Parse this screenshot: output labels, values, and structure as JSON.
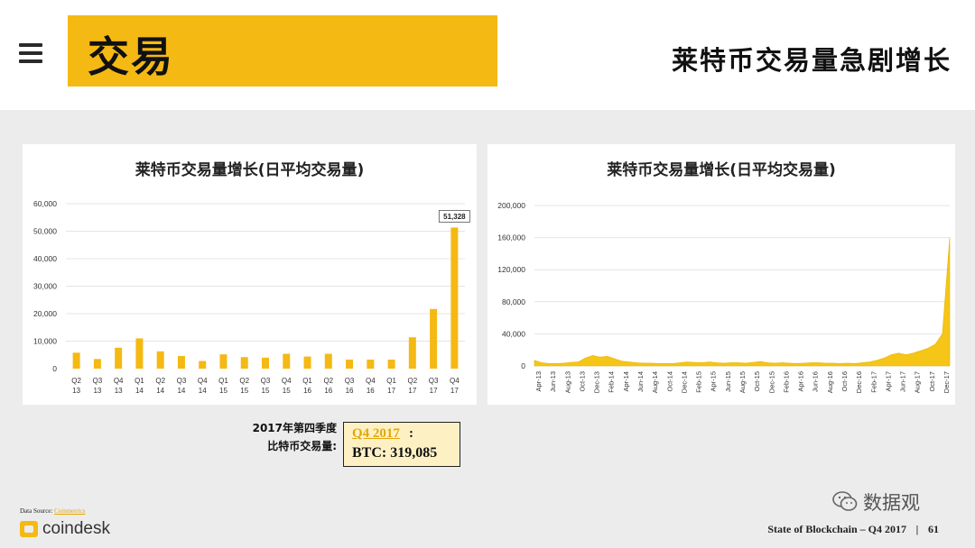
{
  "header": {
    "menu_icon": "hamburger-menu-icon",
    "section_title": "交易",
    "headline": "莱特币交易量急剧增长"
  },
  "colors": {
    "accent": "#f5b914",
    "bar": "#f5b914",
    "area": "#f5c518",
    "callout_bg": "#fdf1c4",
    "q4_highlight": "#e3a607"
  },
  "chart_data": [
    {
      "type": "bar",
      "title": "莱特币交易量增长(日平均交易量)",
      "categories": [
        "Q2 13",
        "Q3 13",
        "Q4 13",
        "Q1 14",
        "Q2 14",
        "Q3 14",
        "Q4 14",
        "Q1 15",
        "Q2 15",
        "Q3 15",
        "Q4 15",
        "Q1 16",
        "Q2 16",
        "Q3 16",
        "Q4 16",
        "Q1 17",
        "Q2 17",
        "Q3 17",
        "Q4 17"
      ],
      "category_lines": [
        [
          "Q2",
          "13"
        ],
        [
          "Q3",
          "13"
        ],
        [
          "Q4",
          "13"
        ],
        [
          "Q1",
          "14"
        ],
        [
          "Q2",
          "14"
        ],
        [
          "Q3",
          "14"
        ],
        [
          "Q4",
          "14"
        ],
        [
          "Q1",
          "15"
        ],
        [
          "Q2",
          "15"
        ],
        [
          "Q3",
          "15"
        ],
        [
          "Q4",
          "15"
        ],
        [
          "Q1",
          "16"
        ],
        [
          "Q2",
          "16"
        ],
        [
          "Q3",
          "16"
        ],
        [
          "Q4",
          "16"
        ],
        [
          "Q1",
          "17"
        ],
        [
          "Q2",
          "17"
        ],
        [
          "Q3",
          "17"
        ],
        [
          "Q4",
          "17"
        ]
      ],
      "values": [
        5800,
        3500,
        7600,
        11000,
        6300,
        4600,
        2800,
        5200,
        4200,
        4000,
        5400,
        4400,
        5400,
        3300,
        3300,
        3300,
        11400,
        21700,
        51328
      ],
      "data_labels": [
        {
          "index": 18,
          "text": "51,328"
        }
      ],
      "yticks": [
        "60,000",
        "50,000",
        "40,000",
        "30,000",
        "20,000",
        "10,000",
        "0"
      ],
      "ylim": [
        0,
        60000
      ],
      "grid": true,
      "xlabel": "",
      "ylabel": ""
    },
    {
      "type": "area",
      "title": "莱特币交易量增长(日平均交易量)",
      "x_tick_labels": [
        "Apr-13",
        "Jun-13",
        "Aug-13",
        "Oct-13",
        "Dec-13",
        "Feb-14",
        "Apr-14",
        "Jun-14",
        "Aug-14",
        "Oct-14",
        "Dec-14",
        "Feb-15",
        "Apr-15",
        "Jun-15",
        "Aug-15",
        "Oct-15",
        "Dec-15",
        "Feb-16",
        "Apr-16",
        "Jun-16",
        "Aug-16",
        "Oct-16",
        "Dec-16",
        "Feb-17",
        "Apr-17",
        "Jun-17",
        "Aug-17",
        "Oct-17",
        "Dec-17"
      ],
      "x": [
        "Apr-13",
        "May-13",
        "Jun-13",
        "Jul-13",
        "Aug-13",
        "Sep-13",
        "Oct-13",
        "Nov-13",
        "Dec-13",
        "Jan-14",
        "Feb-14",
        "Mar-14",
        "Apr-14",
        "May-14",
        "Jun-14",
        "Jul-14",
        "Aug-14",
        "Sep-14",
        "Oct-14",
        "Nov-14",
        "Dec-14",
        "Jan-15",
        "Feb-15",
        "Mar-15",
        "Apr-15",
        "May-15",
        "Jun-15",
        "Jul-15",
        "Aug-15",
        "Sep-15",
        "Oct-15",
        "Nov-15",
        "Dec-15",
        "Jan-16",
        "Feb-16",
        "Mar-16",
        "Apr-16",
        "May-16",
        "Jun-16",
        "Jul-16",
        "Aug-16",
        "Sep-16",
        "Oct-16",
        "Nov-16",
        "Dec-16",
        "Jan-17",
        "Feb-17",
        "Mar-17",
        "Apr-17",
        "May-17",
        "Jun-17",
        "Jul-17",
        "Aug-17",
        "Sep-17",
        "Oct-17",
        "Nov-17",
        "Mid-Dec-17",
        "Dec-17"
      ],
      "values": [
        7000,
        4000,
        3000,
        3000,
        3500,
        4500,
        5000,
        10000,
        13000,
        11000,
        12000,
        9000,
        6000,
        5000,
        4000,
        3500,
        3500,
        3000,
        3000,
        3000,
        4000,
        5000,
        4500,
        4000,
        5000,
        4000,
        3500,
        4000,
        4000,
        3500,
        4500,
        5500,
        4000,
        3500,
        4000,
        3500,
        3000,
        3500,
        4000,
        4000,
        3500,
        3500,
        3000,
        3500,
        3000,
        4000,
        5000,
        7000,
        10000,
        14000,
        16000,
        14000,
        16000,
        19000,
        22000,
        27000,
        40000,
        160000
      ],
      "yticks": [
        "200,000",
        "160,000",
        "120,000",
        "80,000",
        "40,000",
        "0"
      ],
      "ylim": [
        0,
        200000
      ],
      "grid": true,
      "xlabel": "",
      "ylabel": ""
    }
  ],
  "callout": {
    "label_line1": "2017年第四季度",
    "label_line2": "比特币交易量:",
    "quarter": "Q4 2017",
    "colon": ":",
    "value": "BTC: 319,085"
  },
  "footer": {
    "source_prefix": "Data Source: ",
    "source_name": "Coinmetrics",
    "logo_text": "coindesk",
    "logo_icon": "coindesk-logo-icon",
    "wechat_icon": "wechat-icon",
    "wechat_name": "数据观",
    "report": "State of Blockchain – Q4 2017",
    "separator": "|",
    "page": "61"
  }
}
